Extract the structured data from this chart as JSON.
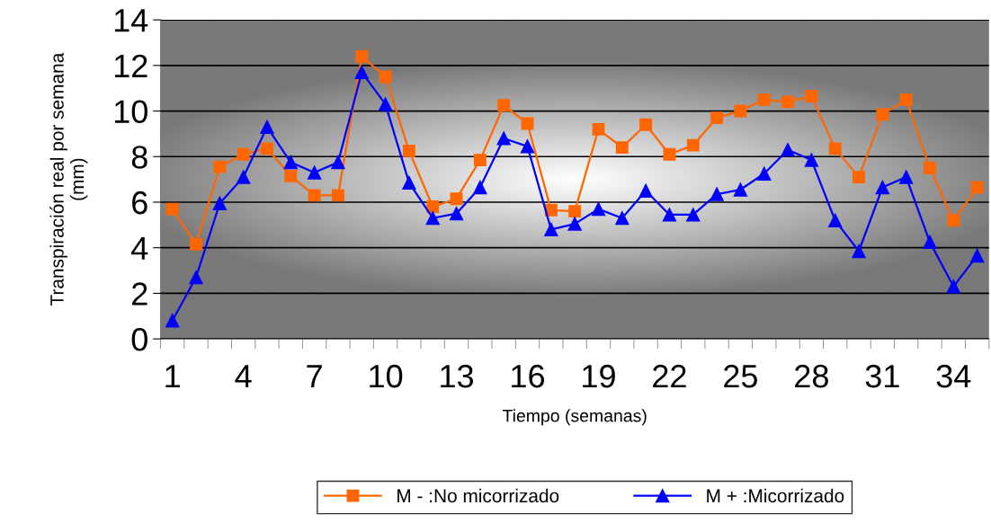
{
  "chart_data": {
    "type": "line",
    "xlabel": "Tiempo (semanas)",
    "ylabel": "Transpiración real por semana\n(mm)",
    "categories": [
      "1",
      null,
      null,
      "4",
      null,
      null,
      "7",
      null,
      null,
      "10",
      null,
      null,
      "13",
      null,
      null,
      "16",
      null,
      null,
      "19",
      null,
      null,
      "22",
      null,
      null,
      "25",
      null,
      null,
      "28",
      null,
      null,
      "31",
      null,
      null,
      "34",
      null
    ],
    "series": [
      {
        "name": "M - :No micorrizado",
        "color": "#ff6600",
        "marker": "square",
        "values": [
          5.7,
          4.15,
          7.55,
          8.1,
          8.35,
          7.15,
          6.3,
          6.3,
          12.4,
          11.5,
          8.25,
          5.8,
          6.15,
          7.85,
          10.25,
          9.45,
          5.65,
          5.6,
          9.2,
          8.4,
          9.4,
          8.1,
          8.5,
          9.7,
          10.0,
          10.5,
          10.4,
          10.65,
          8.35,
          7.1,
          9.85,
          10.5,
          7.5,
          5.2,
          6.65
        ]
      },
      {
        "name": "M + :Micorrizado",
        "color": "#0000ff",
        "marker": "triangle",
        "values": [
          0.8,
          2.7,
          5.95,
          7.1,
          9.3,
          7.75,
          7.3,
          7.75,
          11.7,
          10.3,
          6.85,
          5.3,
          5.5,
          6.65,
          8.8,
          8.45,
          4.8,
          5.05,
          5.7,
          5.3,
          6.5,
          5.45,
          5.45,
          6.35,
          6.55,
          7.25,
          8.3,
          7.85,
          5.2,
          3.85,
          6.65,
          7.1,
          4.25,
          2.3,
          3.65
        ]
      }
    ],
    "ylim": [
      0,
      14
    ],
    "yticks": [
      0,
      2,
      4,
      6,
      8,
      10,
      12,
      14
    ],
    "grid": "y",
    "legend": "bottom",
    "line_style": "solid"
  }
}
